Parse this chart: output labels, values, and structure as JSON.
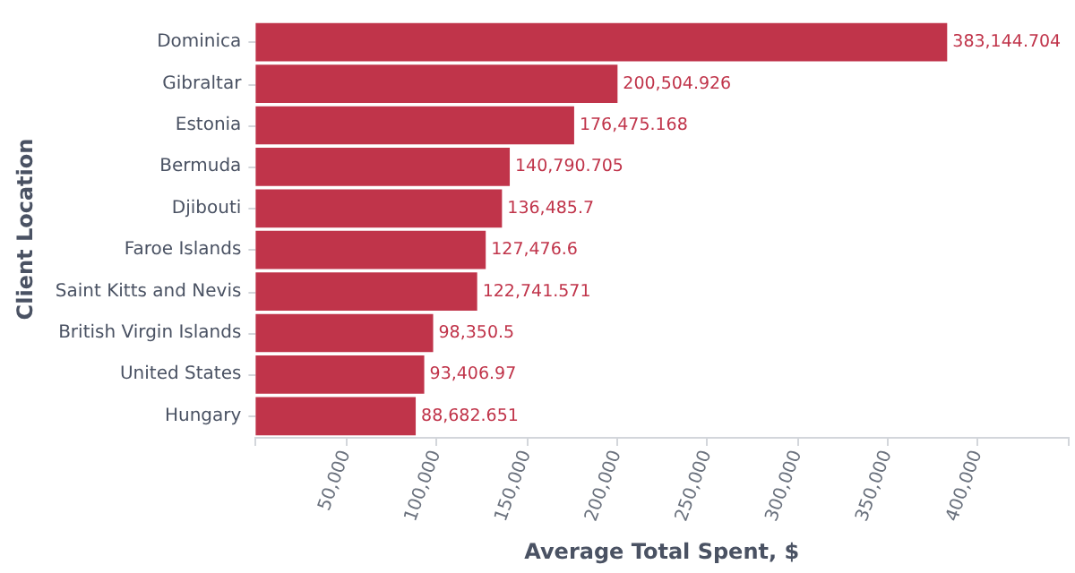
{
  "chart_data": {
    "type": "bar",
    "orientation": "horizontal",
    "xlabel": "Average Total Spent, $",
    "ylabel": "Client Location",
    "categories": [
      "Dominica",
      "Gibraltar",
      "Estonia",
      "Bermuda",
      "Djibouti",
      "Faroe Islands",
      "Saint Kitts and Nevis",
      "British Virgin Islands",
      "United States",
      "Hungary"
    ],
    "values": [
      383144.704,
      200504.926,
      176475.168,
      140790.705,
      136485.7,
      127476.6,
      122741.571,
      98350.5,
      93406.97,
      88682.651
    ],
    "color": "#c0344a",
    "xlim": [
      0,
      450000
    ],
    "xticks": [
      {
        "value": 0,
        "label": null
      },
      {
        "value": 50000,
        "label": "50,000"
      },
      {
        "value": 100000,
        "label": "100,000"
      },
      {
        "value": 150000,
        "label": "150,000"
      },
      {
        "value": 200000,
        "label": "200,000"
      },
      {
        "value": 250000,
        "label": "250,000"
      },
      {
        "value": 300000,
        "label": "300,000"
      },
      {
        "value": 350000,
        "label": "350,000"
      },
      {
        "value": 400000,
        "label": "400,000"
      },
      {
        "value": 450000,
        "label": null
      }
    ],
    "value_labels": [
      "383,144.704",
      "200,504.926",
      "176,475.168",
      "140,790.705",
      "136,485.7",
      "127,476.6",
      "122,741.571",
      "98,350.5",
      "93,406.97",
      "88,682.651"
    ],
    "grid": false
  }
}
